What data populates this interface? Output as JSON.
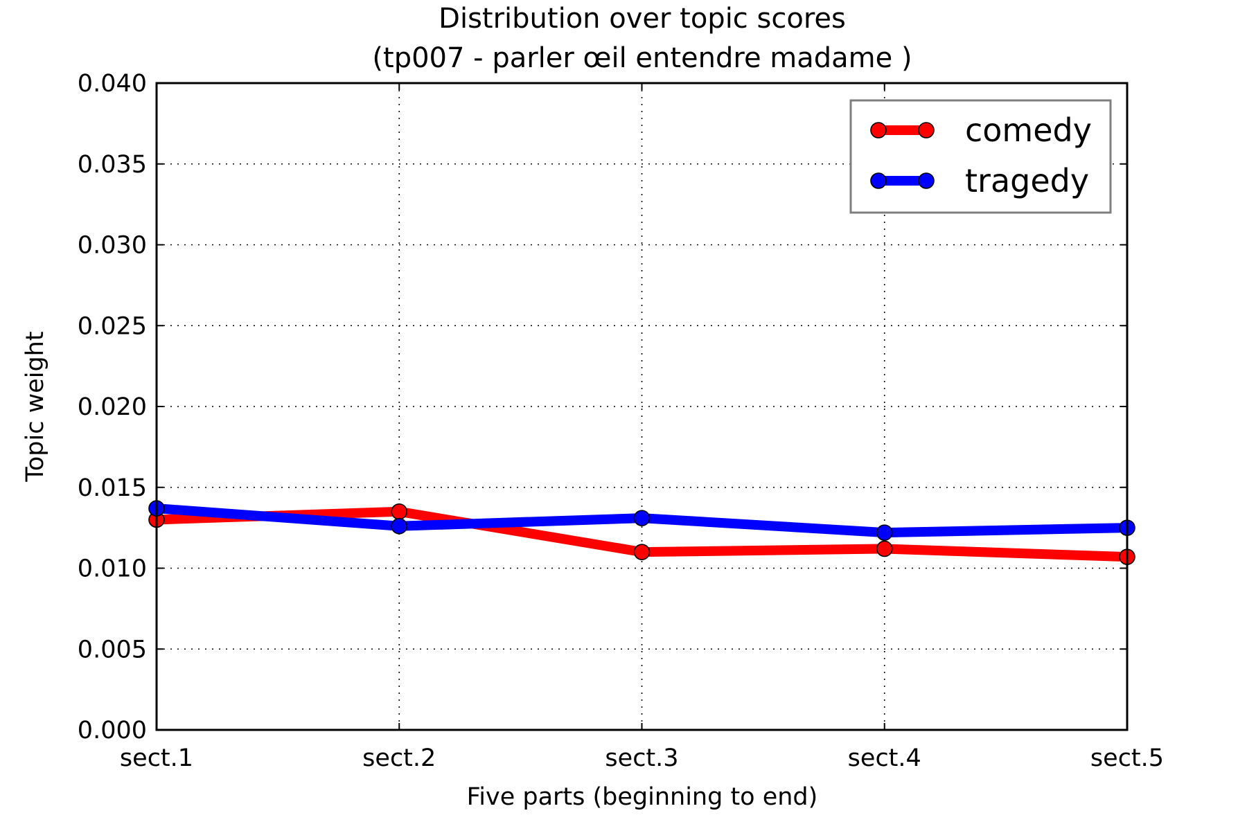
{
  "chart_data": {
    "type": "line",
    "title": "Distribution over topic scores",
    "subtitle": "(tp007 - parler œil entendre madame )",
    "xlabel": "Five parts (beginning to end)",
    "ylabel": "Topic weight",
    "categories": [
      "sect.1",
      "sect.2",
      "sect.3",
      "sect.4",
      "sect.5"
    ],
    "ylim": [
      0,
      0.04
    ],
    "yticks": [
      "0.000",
      "0.005",
      "0.010",
      "0.015",
      "0.020",
      "0.025",
      "0.030",
      "0.035",
      "0.040"
    ],
    "grid": true,
    "legend_position": "top-right",
    "series": [
      {
        "name": "comedy",
        "color": "#ff0000",
        "values": [
          0.013,
          0.0135,
          0.011,
          0.0112,
          0.0107
        ]
      },
      {
        "name": "tragedy",
        "color": "#0000ff",
        "values": [
          0.0137,
          0.0126,
          0.0131,
          0.0122,
          0.0125
        ]
      }
    ]
  }
}
